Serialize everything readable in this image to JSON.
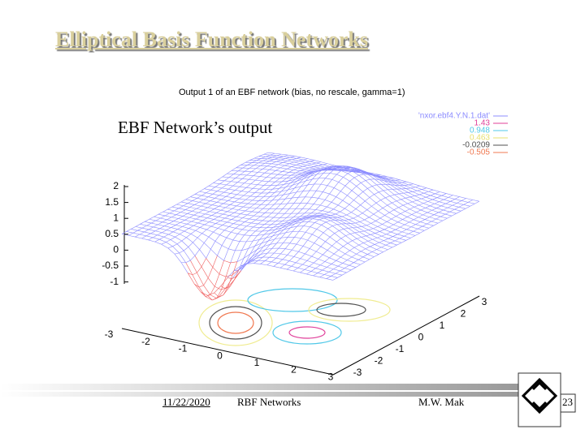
{
  "slide": {
    "title": "Elliptical Basis Function Networks",
    "caption": "EBF Network’s output"
  },
  "plot": {
    "title": "Output 1 of an EBF network (bias, no rescale, gamma=1)",
    "legend": [
      {
        "label": "'nxor.ebf4.Y.N.1.dat'",
        "color": "#8c8cff"
      },
      {
        "label": "1.43",
        "color": "#e0409a"
      },
      {
        "label": "0.948",
        "color": "#50c8e8"
      },
      {
        "label": "0.463",
        "color": "#e8e070"
      },
      {
        "label": "-0.0209",
        "color": "#505050"
      },
      {
        "label": "-0.505",
        "color": "#f07850"
      }
    ],
    "z_ticks": [
      "2",
      "1.5",
      "1",
      "0.5",
      "0",
      "-0.5",
      "-1"
    ],
    "x_ticks": [
      "-3",
      "-2",
      "-1",
      "0",
      "1",
      "2",
      "3"
    ],
    "y_ticks": [
      "-3",
      "-2",
      "-1",
      "0",
      "1",
      "2",
      "3"
    ]
  },
  "footer": {
    "date": "11/22/2020",
    "topic": "RBF Networks",
    "author": "M.W. Mak",
    "page": "23"
  }
}
